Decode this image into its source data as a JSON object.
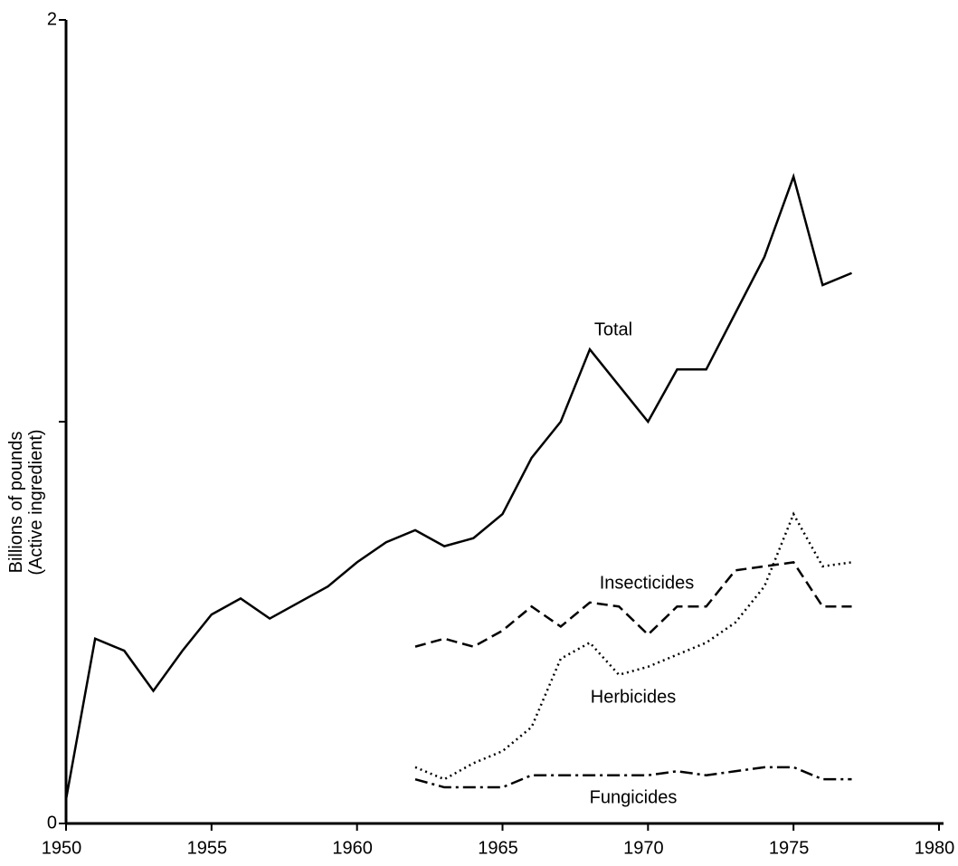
{
  "chart_data": {
    "type": "line",
    "y_label": [
      "Billions of pounds",
      "(Active ingredient)"
    ],
    "xlim": [
      1950,
      1980
    ],
    "xticks": [
      1950,
      1955,
      1960,
      1965,
      1970,
      1975,
      1980
    ],
    "ylim": [
      0,
      2
    ],
    "yticks": [
      0,
      2
    ],
    "yticks_unlabeled": [
      1
    ],
    "series": [
      {
        "name": "Total",
        "color": "#000000",
        "dash": "solid",
        "x": [
          1950,
          1951,
          1952,
          1953,
          1954,
          1955,
          1956,
          1957,
          1958,
          1959,
          1960,
          1961,
          1962,
          1963,
          1964,
          1965,
          1966,
          1967,
          1968,
          1969,
          1970,
          1971,
          1972,
          1973,
          1974,
          1975,
          1976,
          1977
        ],
        "values": [
          0.06,
          0.46,
          0.43,
          0.33,
          0.43,
          0.52,
          0.56,
          0.51,
          0.55,
          0.59,
          0.65,
          0.7,
          0.73,
          0.69,
          0.71,
          0.77,
          0.91,
          1.0,
          1.18,
          1.09,
          1.0,
          1.13,
          1.13,
          1.27,
          1.41,
          1.61,
          1.34,
          1.37
        ]
      },
      {
        "name": "Insecticides",
        "color": "#000000",
        "dash": "dashed",
        "x": [
          1962,
          1963,
          1964,
          1965,
          1966,
          1967,
          1968,
          1969,
          1970,
          1971,
          1972,
          1973,
          1974,
          1975,
          1976,
          1977
        ],
        "values": [
          0.44,
          0.46,
          0.44,
          0.48,
          0.54,
          0.49,
          0.55,
          0.54,
          0.47,
          0.54,
          0.54,
          0.63,
          0.64,
          0.65,
          0.54,
          0.54
        ]
      },
      {
        "name": "Herbicides",
        "color": "#000000",
        "dash": "dotted",
        "x": [
          1962,
          1963,
          1964,
          1965,
          1966,
          1967,
          1968,
          1969,
          1970,
          1971,
          1972,
          1973,
          1974,
          1975,
          1976,
          1977
        ],
        "values": [
          0.14,
          0.11,
          0.15,
          0.18,
          0.24,
          0.41,
          0.45,
          0.37,
          0.39,
          0.42,
          0.45,
          0.5,
          0.59,
          0.77,
          0.64,
          0.65
        ]
      },
      {
        "name": "Fungicides",
        "color": "#000000",
        "dash": "dashdot",
        "x": [
          1962,
          1963,
          1964,
          1965,
          1966,
          1967,
          1968,
          1969,
          1970,
          1971,
          1972,
          1973,
          1974,
          1975,
          1976,
          1977
        ],
        "values": [
          0.11,
          0.09,
          0.09,
          0.09,
          0.12,
          0.12,
          0.12,
          0.12,
          0.12,
          0.13,
          0.12,
          0.13,
          0.14,
          0.14,
          0.11,
          0.11
        ]
      }
    ]
  }
}
